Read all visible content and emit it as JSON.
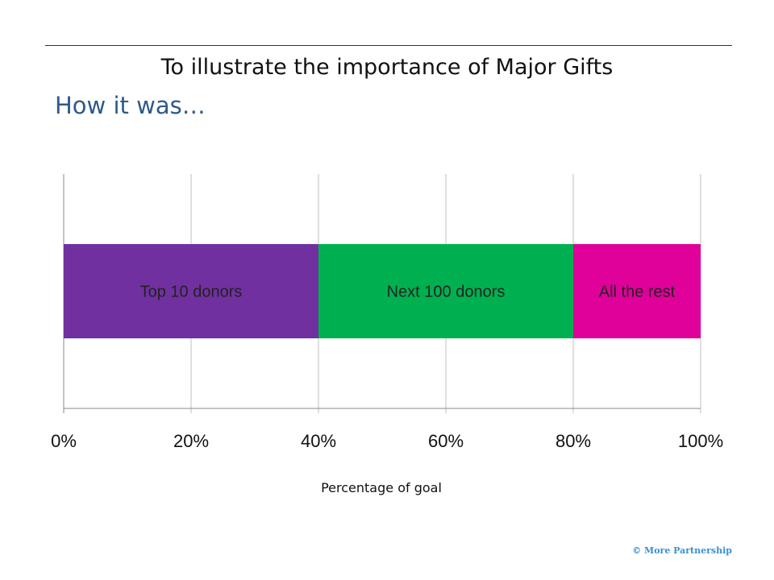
{
  "slide": {
    "title": "To illustrate the importance of Major Gifts",
    "subtitle": "How it was…",
    "copyright": "© More Partnership"
  },
  "chart_data": {
    "type": "bar",
    "orientation": "horizontal",
    "stacked": true,
    "xlabel": "Percentage of goal",
    "xlim": [
      0,
      100
    ],
    "ticks": [
      "0%",
      "20%",
      "40%",
      "60%",
      "80%",
      "100%"
    ],
    "tick_values": [
      0,
      20,
      40,
      60,
      80,
      100
    ],
    "grid": true,
    "legend": "none",
    "series": [
      {
        "label": "Top 10 donors",
        "value": 40,
        "color": "#7030a0"
      },
      {
        "label": "Next 100 donors",
        "value": 40,
        "color": "#00b050"
      },
      {
        "label": "All the rest",
        "value": 20,
        "color": "#e0009a"
      }
    ]
  }
}
